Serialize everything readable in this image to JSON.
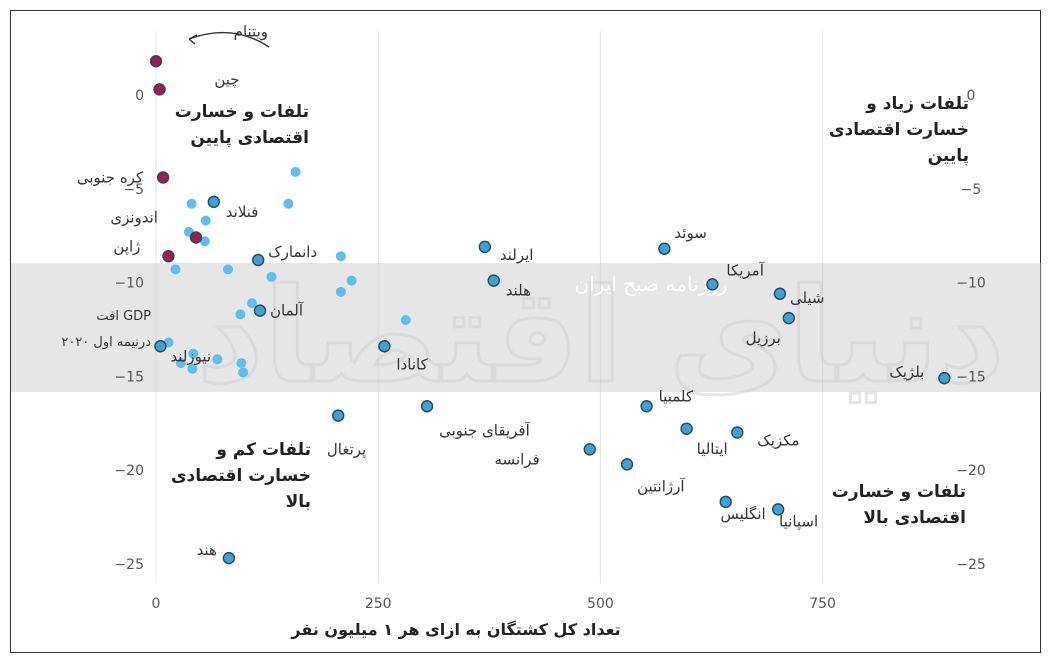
{
  "chart_data": {
    "type": "scatter",
    "xlabel": "تعداد کل کشتگان به ازای هر ۱ میلیون نفر",
    "ylabel_line1": "افت GDP",
    "ylabel_line2": "درنیمه اول ۲۰۲۰",
    "xlim": [
      0,
      900
    ],
    "ylim": [
      -26,
      2
    ],
    "xticks": [
      0,
      250,
      500,
      750
    ],
    "xtick_labels": [
      "0",
      "250",
      "500",
      "750"
    ],
    "yticks": [
      0,
      -5,
      -10,
      -15,
      -20,
      -25
    ],
    "ytick_labels": [
      "0",
      "−5",
      "−10",
      "−15",
      "−20",
      "−25"
    ],
    "grid": true,
    "colors": {
      "asia": "#a3184f",
      "labeled": "#3aa3d8",
      "unlabeled": "#5cc0ec",
      "outline": "#2b4a5a",
      "band": "#c8c8c8"
    },
    "quadrant_labels": {
      "top_left": [
        "تلفات و خسارت",
        "اقتصادی پایین"
      ],
      "top_right": [
        "تلفات زیاد و",
        "خسارت اقتصادی",
        "پایین"
      ],
      "bottom_left": [
        "تلفات کم و",
        "خسارت اقتصادی",
        "بالا"
      ],
      "bottom_right": [
        "تلفات و خسارت",
        "اقتصادی بالا"
      ]
    },
    "arrow_note": "arrow pointing from Vietnam label toward points",
    "watermark": {
      "main": "دنیای اقتصاد",
      "small": "روزنامه صبح ایران"
    },
    "points_labeled": [
      {
        "name": "ویتنام",
        "x": 0,
        "y": 1.8,
        "group": "asia"
      },
      {
        "name": "چین",
        "x": 4,
        "y": 0.3,
        "group": "asia"
      },
      {
        "name": "کره جنوبی",
        "x": 8,
        "y": -4.4,
        "group": "asia"
      },
      {
        "name": "اندونزی",
        "x": 45,
        "y": -7.6,
        "group": "asia"
      },
      {
        "name": "ژاپن",
        "x": 14,
        "y": -8.6,
        "group": "asia"
      },
      {
        "name": "فنلاند",
        "x": 65,
        "y": -5.7,
        "group": "labeled"
      },
      {
        "name": "دانمارک",
        "x": 115,
        "y": -8.8,
        "group": "labeled"
      },
      {
        "name": "آلمان",
        "x": 117,
        "y": -11.5,
        "group": "labeled"
      },
      {
        "name": "نیوزلند",
        "x": 5,
        "y": -13.4,
        "group": "labeled"
      },
      {
        "name": "هند",
        "x": 82,
        "y": -24.7,
        "group": "labeled"
      },
      {
        "name": "پرتغال",
        "x": 205,
        "y": -17.1,
        "group": "labeled"
      },
      {
        "name": "کانادا",
        "x": 257,
        "y": -13.4,
        "group": "labeled"
      },
      {
        "name": "آفریقای جنوبی",
        "x": 305,
        "y": -16.6,
        "group": "labeled"
      },
      {
        "name": "ایرلند",
        "x": 370,
        "y": -8.1,
        "group": "labeled"
      },
      {
        "name": "هلند",
        "x": 380,
        "y": -9.9,
        "group": "labeled"
      },
      {
        "name": "سوئد",
        "x": 572,
        "y": -8.2,
        "group": "labeled"
      },
      {
        "name": "آمریکا",
        "x": 626,
        "y": -10.1,
        "group": "labeled"
      },
      {
        "name": "شیلی",
        "x": 702,
        "y": -10.6,
        "group": "labeled"
      },
      {
        "name": "برزیل",
        "x": 712,
        "y": -11.9,
        "group": "labeled"
      },
      {
        "name": "بلژیک",
        "x": 887,
        "y": -15.1,
        "group": "labeled"
      },
      {
        "name": "کلمبیا",
        "x": 552,
        "y": -16.6,
        "group": "labeled"
      },
      {
        "name": "ایتالیا",
        "x": 597,
        "y": -17.8,
        "group": "labeled"
      },
      {
        "name": "مکزیک",
        "x": 654,
        "y": -18.0,
        "group": "labeled"
      },
      {
        "name": "فرانسه",
        "x": 488,
        "y": -18.9,
        "group": "labeled"
      },
      {
        "name": "آرژانتین",
        "x": 530,
        "y": -19.7,
        "group": "labeled"
      },
      {
        "name": "انگلیس",
        "x": 641,
        "y": -21.7,
        "group": "labeled"
      },
      {
        "name": "اسپانیا",
        "x": 700,
        "y": -22.1,
        "group": "labeled"
      }
    ],
    "points_unlabeled": [
      {
        "x": 157,
        "y": -4.1
      },
      {
        "x": 149,
        "y": -5.8
      },
      {
        "x": 40,
        "y": -5.8
      },
      {
        "x": 56,
        "y": -6.7
      },
      {
        "x": 37,
        "y": -7.3
      },
      {
        "x": 55,
        "y": -7.8
      },
      {
        "x": 208,
        "y": -8.6
      },
      {
        "x": 22,
        "y": -9.3
      },
      {
        "x": 81,
        "y": -9.3
      },
      {
        "x": 130,
        "y": -9.7
      },
      {
        "x": 220,
        "y": -9.9
      },
      {
        "x": 208,
        "y": -10.5
      },
      {
        "x": 108,
        "y": -11.1
      },
      {
        "x": 95,
        "y": -11.7
      },
      {
        "x": 281,
        "y": -12.0
      },
      {
        "x": 14,
        "y": -13.2
      },
      {
        "x": 42,
        "y": -13.8
      },
      {
        "x": 28,
        "y": -14.3
      },
      {
        "x": 69,
        "y": -14.1
      },
      {
        "x": 96,
        "y": -14.3
      },
      {
        "x": 41,
        "y": -14.6
      },
      {
        "x": 98,
        "y": -14.8
      }
    ]
  }
}
